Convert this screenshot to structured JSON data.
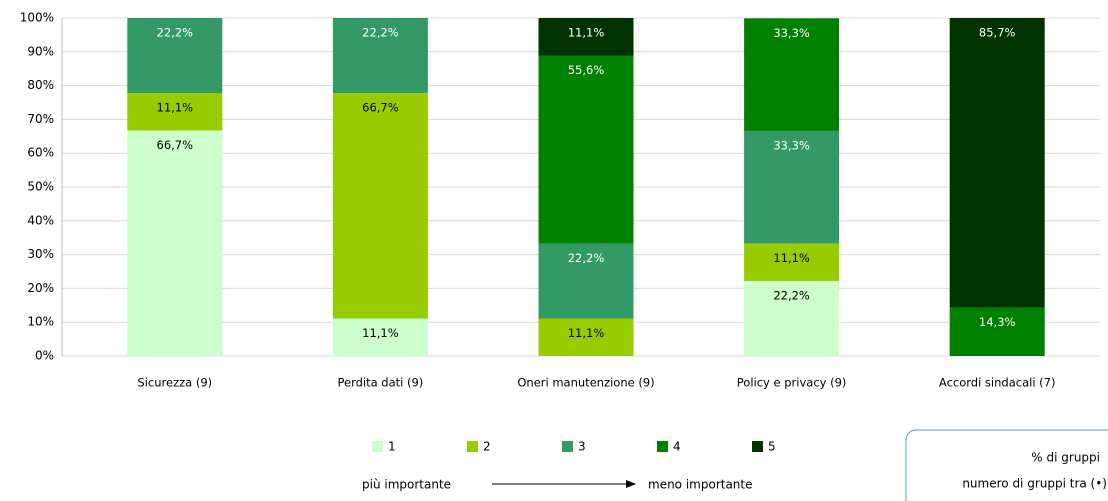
{
  "chart_data": {
    "type": "stacked_bar",
    "categories": [
      "Sicurezza (9)",
      "Perdita dati (9)",
      "Oneri manutenzione (9)",
      "Policy e privacy (9)",
      "Accordi sindacali (7)"
    ],
    "series": [
      {
        "name": "1",
        "color": "#ccffcc",
        "values": [
          66.7,
          11.1,
          null,
          22.2,
          null
        ],
        "value_labels": [
          "66,7%",
          "11,1%",
          null,
          "22,2%",
          null
        ]
      },
      {
        "name": "2",
        "color": "#99cc00",
        "values": [
          11.1,
          66.7,
          11.1,
          11.1,
          null
        ],
        "value_labels": [
          "11,1%",
          "66,7%",
          "11,1%",
          "11,1%",
          null
        ]
      },
      {
        "name": "3",
        "color": "#339966",
        "values": [
          22.2,
          22.2,
          22.2,
          33.3,
          null
        ],
        "value_labels": [
          "22,2%",
          "22,2%",
          "22,2%",
          "33,3%",
          null
        ]
      },
      {
        "name": "4",
        "color": "#008000",
        "values": [
          null,
          null,
          55.6,
          33.3,
          14.3
        ],
        "value_labels": [
          null,
          null,
          "55,6%",
          "33,3%",
          "14,3%"
        ]
      },
      {
        "name": "5",
        "color": "#003300",
        "values": [
          null,
          null,
          11.1,
          null,
          85.7
        ],
        "value_labels": [
          null,
          null,
          "11,1%",
          null,
          "85,7%"
        ]
      }
    ],
    "ylim": [
      0,
      100
    ],
    "yticks": [
      {
        "value": 0,
        "label": "0%"
      },
      {
        "value": 10,
        "label": "10%"
      },
      {
        "value": 20,
        "label": "20%"
      },
      {
        "value": 30,
        "label": "30%"
      },
      {
        "value": 40,
        "label": "40%"
      },
      {
        "value": 50,
        "label": "50%"
      },
      {
        "value": 60,
        "label": "60%"
      },
      {
        "value": 70,
        "label": "70%"
      },
      {
        "value": 80,
        "label": "80%"
      },
      {
        "value": 90,
        "label": "90%"
      },
      {
        "value": 100,
        "label": "100%"
      }
    ],
    "grid": true,
    "legend_position": "bottom",
    "scale_left": "più importante",
    "scale_right": "meno importante",
    "note": [
      "% di gruppi",
      "numero di gruppi tra (•)"
    ]
  }
}
